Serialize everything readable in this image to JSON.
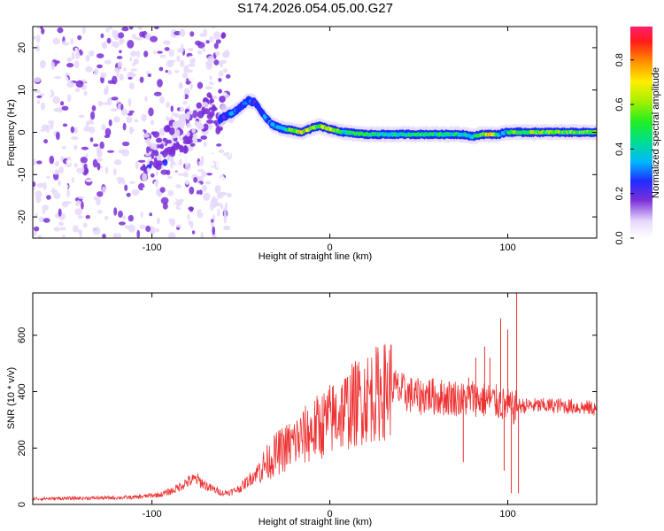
{
  "title": "S174.2026.054.05.00.G27",
  "chart_data": [
    {
      "type": "heatmap",
      "name": "spectrogram",
      "xlabel": "Height of straight line (km)",
      "ylabel": "Frequency (Hz)",
      "xlim": [
        -167,
        150
      ],
      "ylim": [
        -25,
        25
      ],
      "x_ticks": [
        -100,
        0,
        100
      ],
      "y_ticks": [
        -20,
        -10,
        0,
        10,
        20
      ],
      "ridge": {
        "x": [
          -62,
          -58,
          -55,
          -50,
          -46,
          -42,
          -38,
          -33,
          -28,
          -22,
          -16,
          -10,
          -6,
          -2,
          2,
          8,
          20,
          40,
          60,
          75,
          80,
          85,
          90,
          95,
          99,
          102,
          120,
          150
        ],
        "freq": [
          3.0,
          4.0,
          4.5,
          6.0,
          7.5,
          7.0,
          4.5,
          2.0,
          1.0,
          0.5,
          0.0,
          1.0,
          1.5,
          1.0,
          0.5,
          0.0,
          -0.5,
          -0.5,
          -0.5,
          -0.5,
          -1.0,
          -0.5,
          -0.5,
          -0.5,
          0.0,
          0.0,
          0.0,
          0.0
        ],
        "amplitude": [
          0.25,
          0.3,
          0.35,
          0.35,
          0.35,
          0.3,
          0.3,
          0.4,
          0.45,
          0.6,
          0.8,
          0.7,
          0.6,
          0.75,
          0.7,
          0.5,
          0.55,
          0.5,
          0.55,
          0.5,
          0.4,
          0.6,
          0.85,
          0.45,
          0.4,
          0.6,
          0.65,
          0.6
        ]
      },
      "colorbar": {
        "label": "Normalized spectral amplitude",
        "range": [
          0,
          0.95
        ],
        "ticks": [
          "0.0",
          "0.2",
          "0.4",
          "0.6",
          "0.8"
        ]
      }
    },
    {
      "type": "line",
      "name": "snr",
      "xlabel": "Height of straight line (km)",
      "ylabel": "SNR (10 * v/v)",
      "xlim": [
        -167,
        150
      ],
      "ylim": [
        0,
        750
      ],
      "x_ticks": [
        -100,
        0,
        100
      ],
      "y_ticks": [
        0,
        200,
        400,
        600
      ],
      "color": "#ee3333",
      "series": [
        {
          "name": "SNR",
          "x": [
            -167,
            -140,
            -110,
            -95,
            -88,
            -80,
            -75,
            -68,
            -60,
            -55,
            -50,
            -45,
            -40,
            -35,
            -30,
            -25,
            -20,
            -15,
            -10,
            -5,
            0,
            5,
            10,
            15,
            20,
            25,
            30,
            35,
            40,
            45,
            50,
            55,
            60,
            65,
            70,
            75,
            80,
            85,
            90,
            95,
            100,
            103,
            106,
            108,
            110,
            120,
            130,
            140,
            150
          ],
          "values": [
            20,
            22,
            25,
            35,
            50,
            80,
            90,
            60,
            40,
            45,
            60,
            90,
            120,
            150,
            180,
            200,
            220,
            240,
            260,
            280,
            300,
            320,
            340,
            360,
            380,
            390,
            400,
            420,
            400,
            390,
            380,
            390,
            380,
            380,
            380,
            370,
            380,
            370,
            370,
            360,
            350,
            340,
            350,
            350,
            350,
            350,
            350,
            345,
            340
          ]
        }
      ],
      "spikes": [
        {
          "x": 75,
          "value": 150
        },
        {
          "x": 78,
          "value": 450
        },
        {
          "x": 82,
          "value": 520
        },
        {
          "x": 87,
          "value": 560
        },
        {
          "x": 90,
          "value": 520
        },
        {
          "x": 96,
          "value": 660
        },
        {
          "x": 98,
          "value": 120
        },
        {
          "x": 100,
          "value": 620
        },
        {
          "x": 102,
          "value": 40
        },
        {
          "x": 105,
          "value": 750
        },
        {
          "x": 106,
          "value": 40
        }
      ]
    }
  ]
}
